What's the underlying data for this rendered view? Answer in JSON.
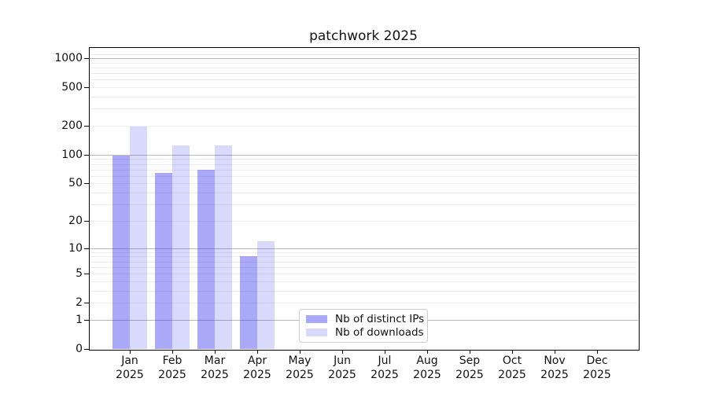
{
  "chart_data": {
    "type": "bar",
    "title": "patchwork 2025",
    "xlabel": "",
    "ylabel": "",
    "scale": "log1p",
    "ylim": [
      0,
      1312
    ],
    "yticks": [
      0,
      1,
      2,
      5,
      10,
      20,
      50,
      100,
      200,
      500,
      1000
    ],
    "grid": "horizontal, dark lines at 1/10/100/1000, faint minor lines at 2-9 per decade",
    "legend_position": "lower center inside plot",
    "categories": [
      {
        "month": "Jan",
        "year": "2025"
      },
      {
        "month": "Feb",
        "year": "2025"
      },
      {
        "month": "Mar",
        "year": "2025"
      },
      {
        "month": "Apr",
        "year": "2025"
      },
      {
        "month": "May",
        "year": "2025"
      },
      {
        "month": "Jun",
        "year": "2025"
      },
      {
        "month": "Jul",
        "year": "2025"
      },
      {
        "month": "Aug",
        "year": "2025"
      },
      {
        "month": "Sep",
        "year": "2025"
      },
      {
        "month": "Oct",
        "year": "2025"
      },
      {
        "month": "Nov",
        "year": "2025"
      },
      {
        "month": "Dec",
        "year": "2025"
      }
    ],
    "series": [
      {
        "name": "Nb of distinct IPs",
        "color": "#a9a9f8",
        "fill": "rgba(51,51,238,0.42)",
        "values": [
          97,
          64,
          70,
          8,
          null,
          null,
          null,
          null,
          null,
          null,
          null,
          null
        ]
      },
      {
        "name": "Nb of downloads",
        "color": "#d9d9f9",
        "fill": "rgba(51,51,238,0.19)",
        "values": [
          196,
          124,
          124,
          12,
          null,
          null,
          null,
          null,
          null,
          null,
          null,
          null
        ]
      }
    ]
  }
}
